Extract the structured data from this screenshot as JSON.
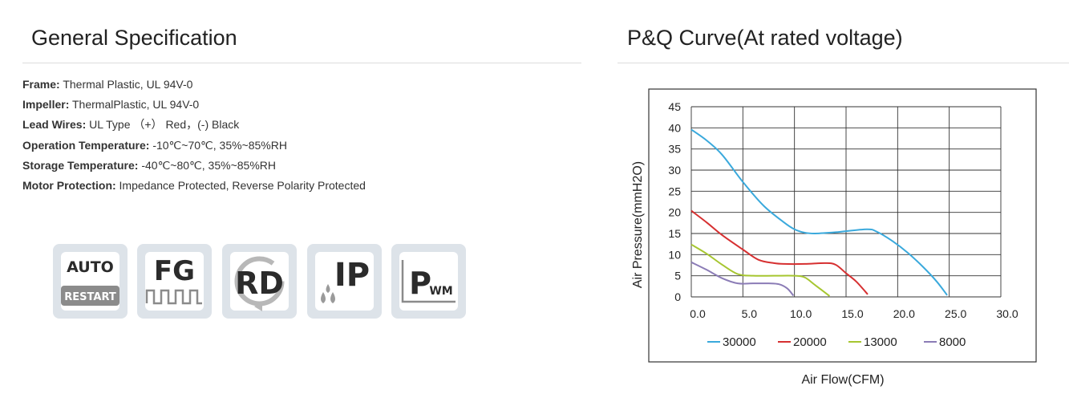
{
  "general_spec": {
    "title": "General Specification",
    "items": [
      {
        "key": "Frame:",
        "value": " Thermal Plastic, UL 94V-0"
      },
      {
        "key": "Impeller:",
        "value": " ThermalPlastic, UL 94V-0"
      },
      {
        "key": "Lead Wires:",
        "value": " UL Type （+） Red，(-)  Black"
      },
      {
        "key": "Operation Temperature:",
        "value": " -10℃~70℃, 35%~85%RH"
      },
      {
        "key": "Storage Temperature:",
        "value": " -40℃~80℃, 35%~85%RH"
      },
      {
        "key": "Motor Protection:",
        "value": " Impedance Protected, Reverse Polarity Protected"
      }
    ]
  },
  "feature_icons": [
    {
      "icon": "auto-restart-icon",
      "top": "AUTO",
      "bottom": "RESTART"
    },
    {
      "icon": "fg-signal-icon",
      "text": "FG"
    },
    {
      "icon": "rd-rotation-detect-icon",
      "text": "RD"
    },
    {
      "icon": "ip-rating-icon",
      "text": "IP"
    },
    {
      "icon": "pwm-control-icon",
      "main": "P",
      "sub": "WM"
    }
  ],
  "pq_curve": {
    "title": "P&Q Curve(At rated voltage)"
  },
  "chart_data": {
    "type": "line",
    "title": "",
    "xlabel": "Air Flow(CFM)",
    "ylabel": "Air Pressure(mmH2O)",
    "xlim": [
      0,
      30
    ],
    "ylim": [
      0,
      45
    ],
    "x_ticks": [
      "0.0",
      "5.0",
      "10.0",
      "15.0",
      "20.0",
      "25.0",
      "30.0"
    ],
    "y_ticks": [
      "0",
      "5",
      "10",
      "15",
      "20",
      "25",
      "30",
      "35",
      "40",
      "45"
    ],
    "grid": true,
    "legend_position": "bottom",
    "series": [
      {
        "name": "30000",
        "color": "#3aa9dc",
        "points": [
          [
            0,
            39.6
          ],
          [
            1.5,
            37
          ],
          [
            3,
            33.6
          ],
          [
            5,
            27.2
          ],
          [
            7,
            21.6
          ],
          [
            9,
            17.6
          ],
          [
            10,
            16
          ],
          [
            11,
            15.2
          ],
          [
            12,
            15
          ],
          [
            14,
            15.3
          ],
          [
            17,
            16
          ],
          [
            18,
            15.4
          ],
          [
            19.5,
            13.2
          ],
          [
            21,
            10.4
          ],
          [
            22.5,
            7
          ],
          [
            23.8,
            3.6
          ],
          [
            24.8,
            0.4
          ]
        ]
      },
      {
        "name": "20000",
        "color": "#d63031",
        "points": [
          [
            0,
            20.4
          ],
          [
            1.5,
            17.6
          ],
          [
            3,
            14.6
          ],
          [
            5,
            11.2
          ],
          [
            6.5,
            8.8
          ],
          [
            8,
            8
          ],
          [
            9,
            7.8
          ],
          [
            11,
            7.8
          ],
          [
            13,
            8
          ],
          [
            14,
            7.6
          ],
          [
            15,
            5.6
          ],
          [
            16,
            3.6
          ],
          [
            17.1,
            0.6
          ]
        ]
      },
      {
        "name": "13000",
        "color": "#a6c630",
        "points": [
          [
            0,
            12.4
          ],
          [
            1.5,
            10.2
          ],
          [
            3,
            7.6
          ],
          [
            4.5,
            5.4
          ],
          [
            6,
            5
          ],
          [
            8,
            5
          ],
          [
            10,
            5
          ],
          [
            11,
            4.6
          ],
          [
            12,
            2.8
          ],
          [
            13.4,
            0.2
          ]
        ]
      },
      {
        "name": "8000",
        "color": "#8b7cb6",
        "points": [
          [
            0,
            8.2
          ],
          [
            1.5,
            6.4
          ],
          [
            3,
            4.4
          ],
          [
            4.5,
            3.2
          ],
          [
            6,
            3.2
          ],
          [
            7.5,
            3.2
          ],
          [
            8.5,
            3
          ],
          [
            9.3,
            2
          ],
          [
            9.9,
            0.3
          ]
        ]
      }
    ]
  }
}
